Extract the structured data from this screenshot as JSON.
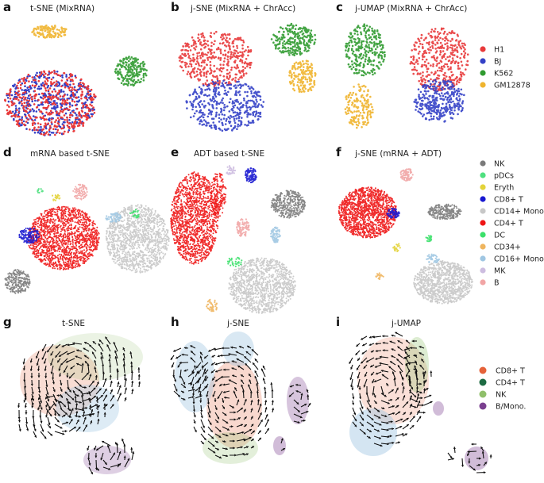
{
  "figure": {
    "rows": [
      {
        "panels": [
          {
            "letter": "a",
            "title": "t-SNE (MixRNA)"
          },
          {
            "letter": "b",
            "title": "j-SNE (MixRNA + ChrAcc)"
          },
          {
            "letter": "c",
            "title": "j-UMAP (MixRNA + ChrAcc)"
          }
        ],
        "legend": [
          {
            "label": "H1",
            "color": "#e8393a"
          },
          {
            "label": "BJ",
            "color": "#3340c6"
          },
          {
            "label": "K562",
            "color": "#2f9a2f"
          },
          {
            "label": "GM12878",
            "color": "#efb42e"
          }
        ]
      },
      {
        "panels": [
          {
            "letter": "d",
            "title": "mRNA based t-SNE"
          },
          {
            "letter": "e",
            "title": "ADT based t-SNE"
          },
          {
            "letter": "f",
            "title": "j-SNE (mRNA + ADT)"
          }
        ],
        "legend": [
          {
            "label": "NK",
            "color": "#7a7a7a"
          },
          {
            "label": "pDCs",
            "color": "#4fe07f"
          },
          {
            "label": "Eryth",
            "color": "#e3d33a"
          },
          {
            "label": "CD8+ T",
            "color": "#1717d0"
          },
          {
            "label": "CD14+ Mono.",
            "color": "#c7c7c7"
          },
          {
            "label": "CD4+ T",
            "color": "#ee1515"
          },
          {
            "label": "DC",
            "color": "#3be06a"
          },
          {
            "label": "CD34+",
            "color": "#efb55e"
          },
          {
            "label": "CD16+ Mono.",
            "color": "#9fc6e2"
          },
          {
            "label": "MK",
            "color": "#cdbde0"
          },
          {
            "label": "B",
            "color": "#f1a5a5"
          }
        ]
      },
      {
        "panels": [
          {
            "letter": "g",
            "title": "t-SNE"
          },
          {
            "letter": "h",
            "title": "j-SNE"
          },
          {
            "letter": "i",
            "title": "j-UMAP"
          }
        ],
        "legend": [
          {
            "label": "CD8+ T",
            "color": "#e5623a"
          },
          {
            "label": "CD4+ T",
            "color": "#1e6b43"
          },
          {
            "label": "NK",
            "color": "#8fbf6a"
          },
          {
            "label": "B/Mono.",
            "color": "#7a3f8f"
          }
        ]
      }
    ]
  }
}
